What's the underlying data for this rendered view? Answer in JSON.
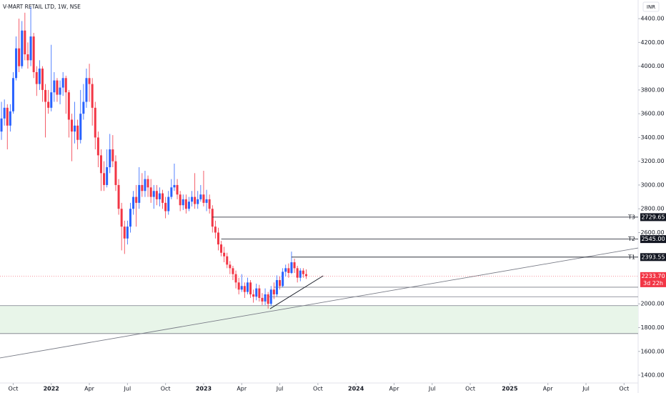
{
  "chart_data": {
    "type": "candlestick",
    "title": "V-MART RETAIL LTD, 1W, NSE",
    "currency": "INR",
    "up_color": "#2962ff",
    "down_color": "#f23645",
    "open": [
      3450,
      3560,
      3650,
      3500,
      3620,
      3900,
      4150,
      4000,
      4300,
      4100,
      4050,
      4250,
      3950,
      3850,
      3980,
      3800,
      3700,
      3650,
      3780,
      3880,
      3760,
      3820,
      3900,
      3780,
      3550,
      3450,
      3500,
      3380,
      3600,
      3700,
      3900,
      3850,
      3650,
      3400,
      3250,
      3100,
      3000,
      3150,
      3300,
      3200,
      3000,
      2800,
      2650,
      2550,
      2650,
      2800,
      2900,
      2850,
      3000,
      2950,
      3050,
      2980,
      2900,
      2950,
      2880,
      2930,
      2850,
      2780,
      2900,
      2980,
      3000,
      2920,
      2830,
      2880,
      2800,
      2860,
      2900,
      2840,
      2880,
      2920,
      2850,
      2880,
      2800,
      2650,
      2600,
      2500,
      2430,
      2400,
      2330,
      2300,
      2250,
      2180,
      2120,
      2150,
      2100,
      2180,
      2080,
      2060,
      2130,
      2050,
      2020,
      2080,
      2000,
      2120,
      2080,
      2200,
      2150,
      2270,
      2300,
      2260,
      2350,
      2300,
      2220,
      2280,
      2250
    ],
    "high": [
      3700,
      3720,
      3680,
      3680,
      3950,
      4250,
      4400,
      4380,
      4450,
      4200,
      4500,
      4280,
      4000,
      4050,
      4000,
      3850,
      3800,
      4180,
      3950,
      3900,
      3880,
      3950,
      3920,
      3800,
      3600,
      3700,
      3550,
      3800,
      3850,
      3980,
      4020,
      3900,
      3700,
      3450,
      3300,
      3200,
      3300,
      3430,
      3420,
      3250,
      3050,
      2850,
      2700,
      2700,
      2850,
      2950,
      3000,
      3150,
      3100,
      3120,
      3080,
      3050,
      3000,
      3000,
      2980,
      2960,
      2900,
      2950,
      3050,
      3180,
      3050,
      2950,
      2920,
      2920,
      2900,
      2950,
      3100,
      2950,
      3000,
      3120,
      2960,
      2920,
      2830,
      2700,
      2640,
      2530,
      2480,
      2430,
      2360,
      2320,
      2280,
      2220,
      2250,
      2180,
      2220,
      2200,
      2120,
      2170,
      2160,
      2090,
      2130,
      2100,
      2150,
      2180,
      2240,
      2230,
      2300,
      2330,
      2340,
      2440,
      2380,
      2320,
      2300,
      2300,
      2290
    ],
    "low": [
      3380,
      3500,
      3300,
      3450,
      3600,
      3880,
      3950,
      3980,
      4050,
      3980,
      4000,
      3900,
      3750,
      3800,
      3700,
      3400,
      3600,
      3620,
      3700,
      3700,
      3680,
      3750,
      3600,
      3400,
      3200,
      3350,
      3300,
      3350,
      3550,
      3650,
      3700,
      3500,
      3300,
      3150,
      2950,
      2950,
      2980,
      3100,
      3150,
      2950,
      2750,
      2450,
      2420,
      2500,
      2600,
      2750,
      2650,
      2800,
      2900,
      2900,
      2900,
      2850,
      2800,
      2830,
      2820,
      2800,
      2720,
      2750,
      2880,
      2950,
      2880,
      2780,
      2790,
      2760,
      2780,
      2820,
      2800,
      2800,
      2860,
      2820,
      2780,
      2760,
      2600,
      2550,
      2450,
      2400,
      2350,
      2300,
      2250,
      2200,
      2130,
      2080,
      2100,
      2050,
      2080,
      2050,
      2010,
      2030,
      2020,
      1990,
      1990,
      1960,
      1980,
      2040,
      2060,
      2120,
      2140,
      2230,
      2220,
      2250,
      2260,
      2180,
      2190,
      2220,
      2210
    ],
    "close": [
      3560,
      3650,
      3500,
      3620,
      3900,
      4150,
      4000,
      4300,
      4100,
      4050,
      4250,
      3950,
      3850,
      3980,
      3800,
      3700,
      3650,
      3780,
      3880,
      3760,
      3820,
      3900,
      3780,
      3550,
      3450,
      3500,
      3380,
      3600,
      3700,
      3900,
      3850,
      3650,
      3400,
      3250,
      3100,
      3000,
      3150,
      3300,
      3200,
      3000,
      2800,
      2650,
      2550,
      2650,
      2800,
      2900,
      2850,
      3000,
      2950,
      3050,
      2980,
      2900,
      2950,
      2880,
      2930,
      2850,
      2780,
      2900,
      2980,
      3000,
      2920,
      2830,
      2880,
      2800,
      2860,
      2900,
      2840,
      2880,
      2920,
      2850,
      2880,
      2800,
      2650,
      2600,
      2500,
      2430,
      2400,
      2330,
      2300,
      2250,
      2180,
      2120,
      2150,
      2100,
      2180,
      2080,
      2060,
      2130,
      2050,
      2020,
      2080,
      2000,
      2120,
      2080,
      2200,
      2150,
      2270,
      2300,
      2260,
      2350,
      2300,
      2220,
      2280,
      2250,
      2233.7
    ],
    "xlim": [
      -0.5,
      217.3
    ],
    "xticks": [
      {
        "value": 4,
        "label": "Oct"
      },
      {
        "value": 17,
        "label": "2022"
      },
      {
        "value": 30,
        "label": "Apr"
      },
      {
        "value": 43,
        "label": "Jul"
      },
      {
        "value": 56,
        "label": "Oct"
      },
      {
        "value": 69,
        "label": "2023"
      },
      {
        "value": 82,
        "label": "Apr"
      },
      {
        "value": 95,
        "label": "Jul"
      },
      {
        "value": 108,
        "label": "Oct"
      },
      {
        "value": 121,
        "label": "2024"
      },
      {
        "value": 134,
        "label": "Apr"
      },
      {
        "value": 147,
        "label": "Jul"
      },
      {
        "value": 160,
        "label": "Oct"
      },
      {
        "value": 173.5,
        "label": "2025"
      },
      {
        "value": 186.5,
        "label": "Apr"
      },
      {
        "value": 199.5,
        "label": "Jul"
      },
      {
        "value": 212.5,
        "label": "Oct"
      }
    ],
    "ylim": [
      1334,
      4557
    ],
    "yticks": [
      {
        "value": 1400,
        "label": "1400.00"
      },
      {
        "value": 1600,
        "label": "1600.00"
      },
      {
        "value": 1800,
        "label": "1800.00"
      },
      {
        "value": 2000,
        "label": "2000.00"
      },
      {
        "value": 2600,
        "label": "2600.00"
      },
      {
        "value": 2800,
        "label": "2800.00"
      },
      {
        "value": 3000,
        "label": "3000.00"
      },
      {
        "value": 3200,
        "label": "3200.00"
      },
      {
        "value": 3400,
        "label": "3400.00"
      },
      {
        "value": 3600,
        "label": "3600.00"
      },
      {
        "value": 3800,
        "label": "3800.00"
      },
      {
        "value": 4000,
        "label": "4000.00"
      },
      {
        "value": 4200,
        "label": "4200.00"
      },
      {
        "value": 4400,
        "label": "4400.00"
      }
    ],
    "levels": [
      {
        "name": "T3",
        "value": 2729.65,
        "label": "2729.65",
        "start": 72
      },
      {
        "name": "T2",
        "value": 2545,
        "label": "2545.00",
        "start": 75
      },
      {
        "name": "T1",
        "value": 2393.55,
        "label": "2393.55",
        "start": 99
      }
    ],
    "support_lines": [
      {
        "value": 2140,
        "start": 93
      },
      {
        "value": 2060,
        "start": 91
      },
      {
        "value": 1985,
        "start": -0.5
      },
      {
        "value": 1750,
        "start": -0.5
      }
    ],
    "zone": {
      "ylim": [
        1750,
        1985
      ],
      "color": "#e8f5e9"
    },
    "trendlines": [
      {
        "x": [
          -0.5,
          217.3
        ],
        "y": [
          1545,
          2470
        ],
        "color": "#787b86"
      },
      {
        "x": [
          91.7,
          109.8
        ],
        "y": [
          1959,
          2236
        ],
        "color": "#131722"
      }
    ],
    "last_price": {
      "value": 2233.7,
      "label": "2233.70",
      "countdown": "3d 22h",
      "color": "#f23645"
    }
  }
}
